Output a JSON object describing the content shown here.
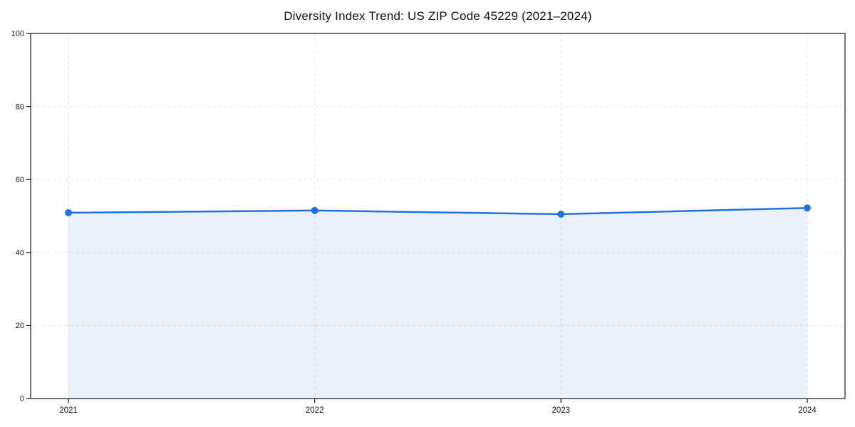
{
  "page": {
    "background": "#ffffff"
  },
  "chart_data": {
    "type": "area",
    "title": "Diversity Index Trend: US ZIP Code 45229 (2021–2024)",
    "x_labels": [
      "2021",
      "2022",
      "2023",
      "2024"
    ],
    "series": [
      {
        "name": "Diversity Index",
        "values": [
          50.9,
          51.5,
          50.5,
          52.2
        ]
      }
    ],
    "ylim": [
      0,
      100
    ],
    "yticks": [
      0,
      20,
      40,
      60,
      80,
      100
    ],
    "grid": {
      "style": "dashed",
      "horizontal": true,
      "vertical": true
    },
    "legend_position": "none",
    "marker": "circle",
    "colors": {
      "line": "#2272dd",
      "marker": "#2272dd",
      "fill": "rgba(34,114,221,0.10)",
      "grid": "#e2e2e2",
      "spine": "#1a1a1a",
      "tick_label": "#1a1a1a",
      "title": "#111111"
    }
  }
}
